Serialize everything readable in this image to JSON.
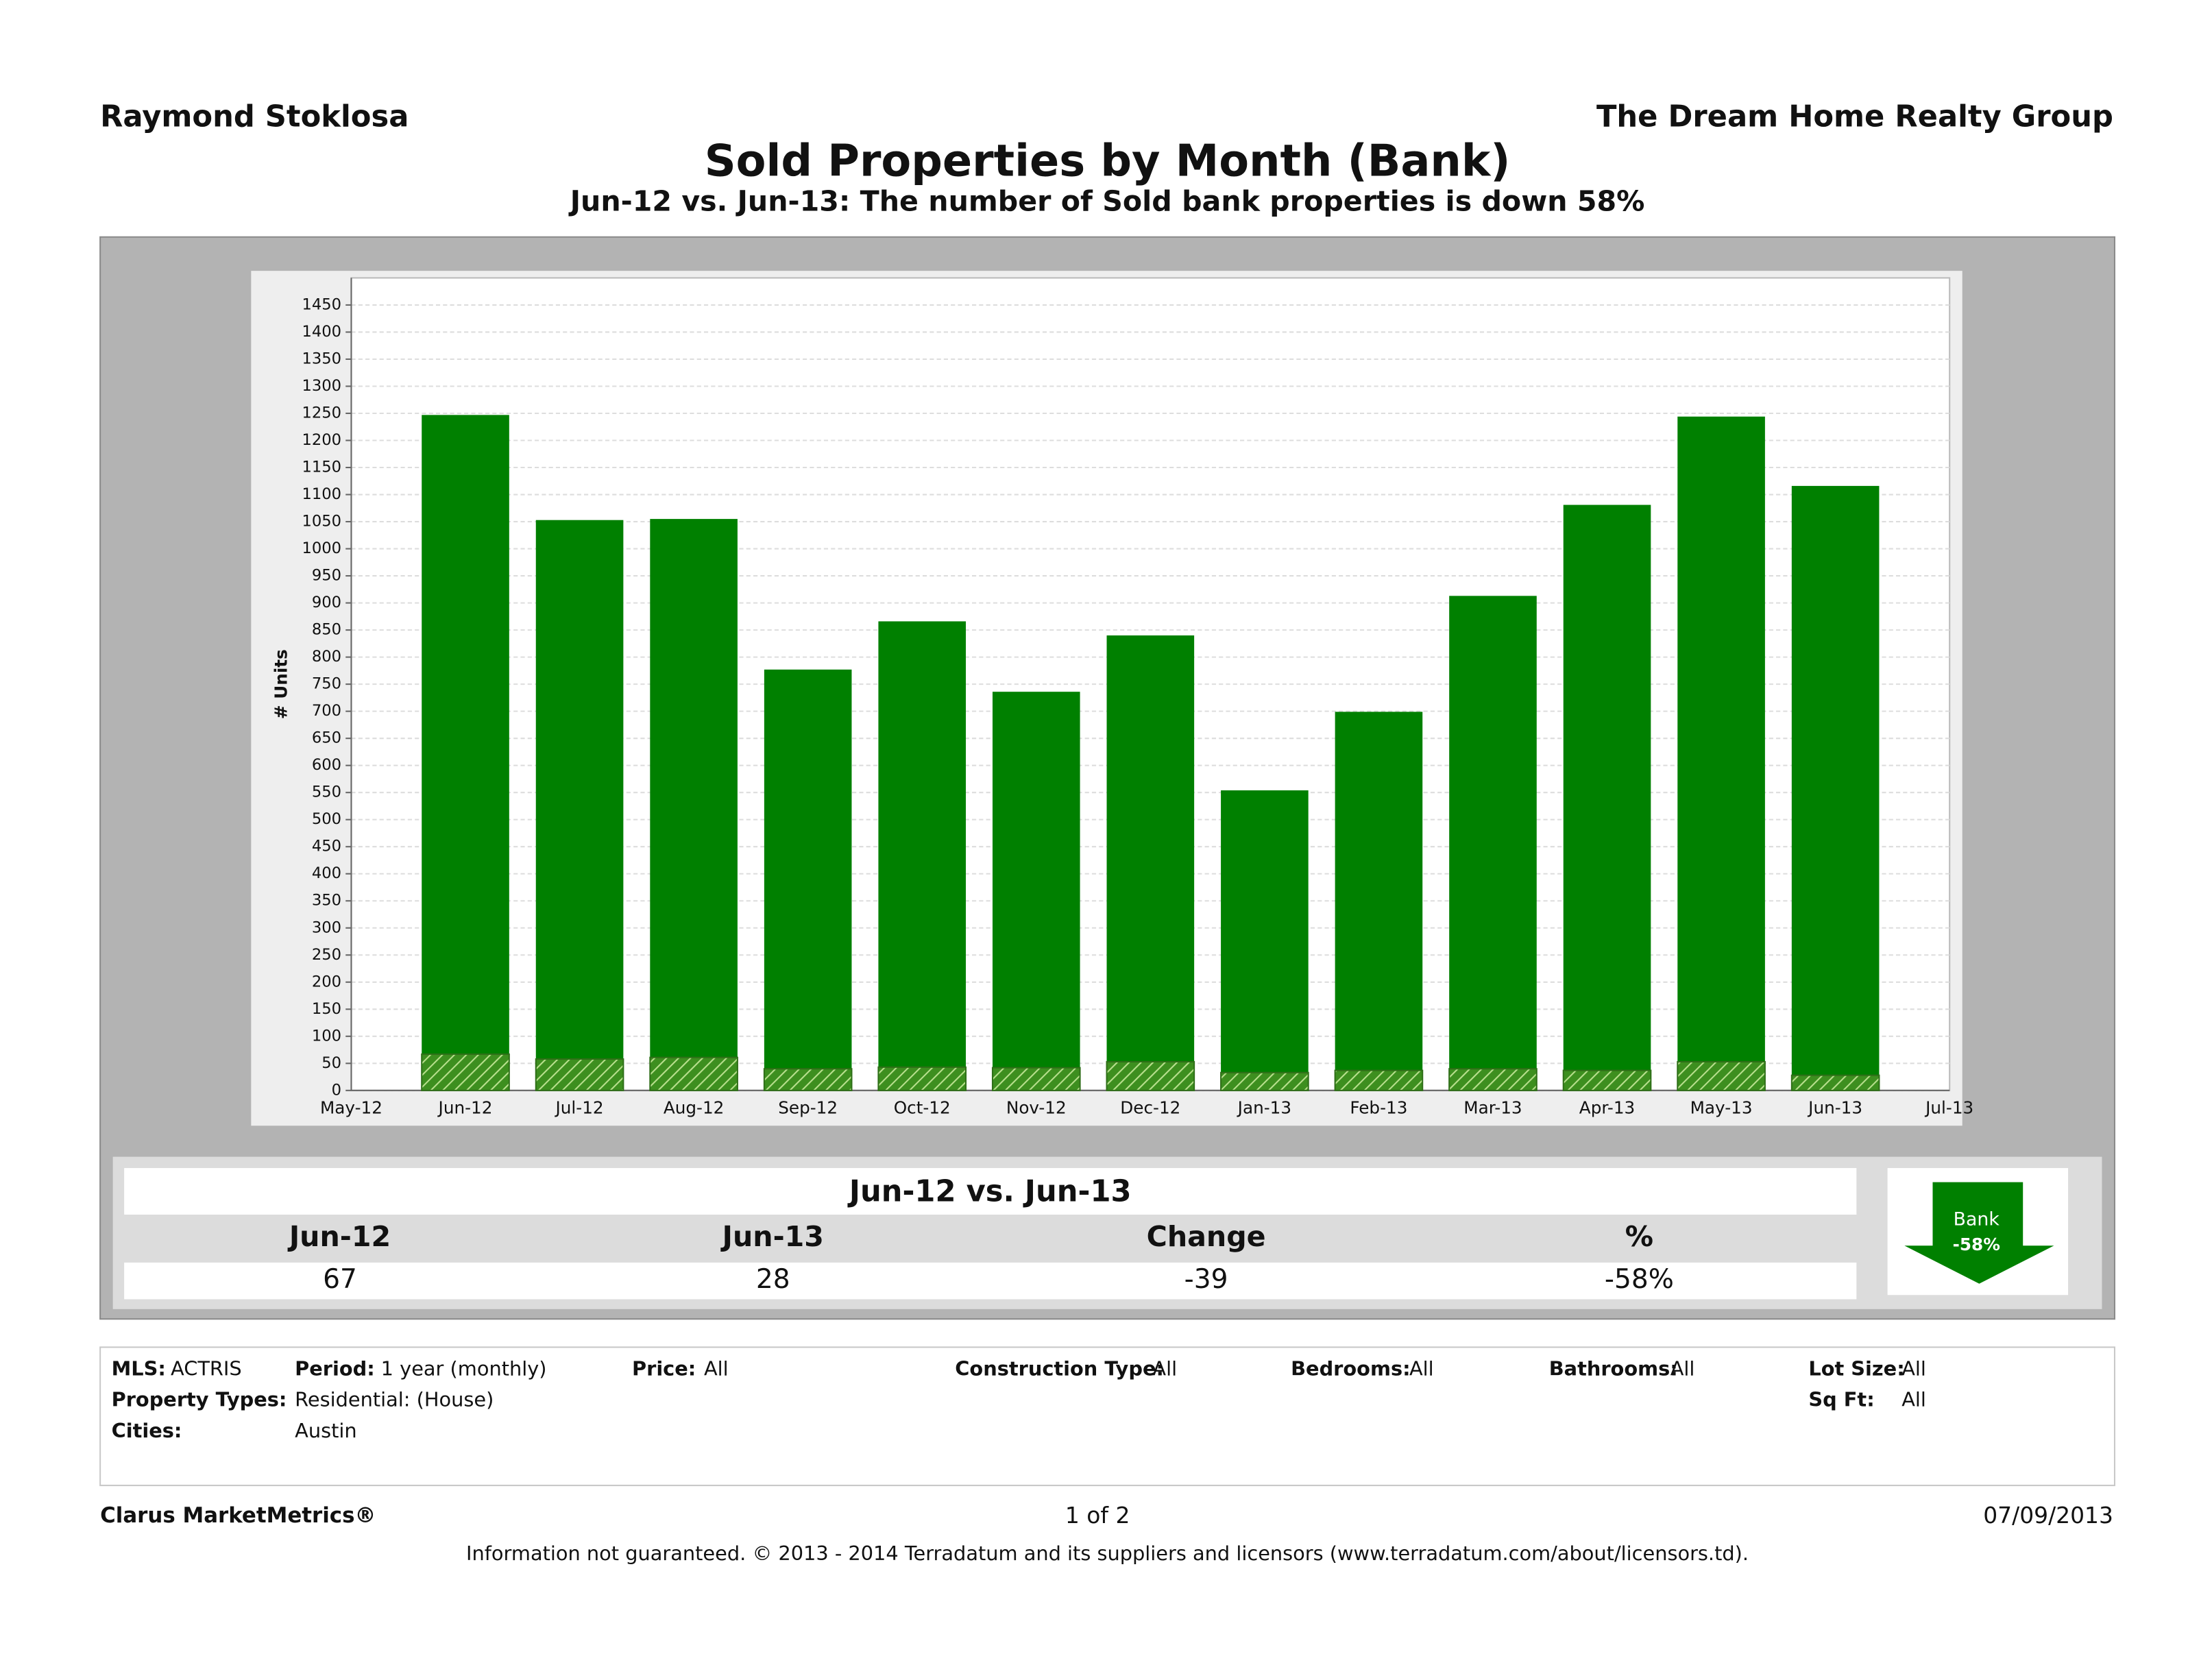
{
  "header": {
    "agent": "Raymond Stoklosa",
    "company": "The Dream Home Realty Group"
  },
  "chart_data": {
    "type": "bar",
    "title": "Sold Properties by Month (Bank)",
    "subtitle": "Jun-12 vs. Jun-13: The number of Sold bank properties is down 58%",
    "y_label": "# Units",
    "categories": [
      "May-12",
      "Jun-12",
      "Jul-12",
      "Aug-12",
      "Sep-12",
      "Oct-12",
      "Nov-12",
      "Dec-12",
      "Jan-13",
      "Feb-13",
      "Mar-13",
      "Apr-13",
      "May-13",
      "Jun-13",
      "Jul-13"
    ],
    "series": [
      {
        "color": "#008000",
        "values": [
          null,
          1247,
          1053,
          1055,
          777,
          866,
          736,
          840,
          554,
          699,
          913,
          1081,
          1244,
          1116,
          null
        ]
      },
      {
        "color": "#3d8f1f",
        "hatch": true,
        "values": [
          null,
          67,
          58,
          61,
          40,
          43,
          42,
          53,
          33,
          37,
          40,
          37,
          53,
          28,
          null
        ]
      }
    ],
    "ylim": [
      0,
      1500
    ],
    "yticks": [
      0,
      50,
      100,
      150,
      200,
      250,
      300,
      350,
      400,
      450,
      500,
      550,
      600,
      650,
      700,
      750,
      800,
      850,
      900,
      950,
      1000,
      1050,
      1100,
      1150,
      1200,
      1250,
      1300,
      1350,
      1400,
      1450
    ],
    "grid": true
  },
  "summary": {
    "title": "Jun-12 vs. Jun-13",
    "headers": [
      "Jun-12",
      "Jun-13",
      "Change",
      "%"
    ],
    "values": [
      "67",
      "28",
      "-39",
      "-58%"
    ],
    "badge": {
      "label": "Bank",
      "value": "-58%"
    }
  },
  "filters": {
    "mls": {
      "label": "MLS:",
      "value": "ACTRIS"
    },
    "period": {
      "label": "Period:",
      "value": "1 year (monthly)"
    },
    "price": {
      "label": "Price:",
      "value": "All"
    },
    "construction": {
      "label": "Construction Type:",
      "value": "All"
    },
    "bedrooms": {
      "label": "Bedrooms:",
      "value": "All"
    },
    "bathrooms": {
      "label": "Bathrooms:",
      "value": "All"
    },
    "lot_size": {
      "label": "Lot Size:",
      "value": "All"
    },
    "property_types": {
      "label": "Property Types:",
      "value": "Residential: (House)"
    },
    "sq_ft": {
      "label": "Sq Ft:",
      "value": "All"
    },
    "cities": {
      "label": "Cities:",
      "value": "Austin"
    }
  },
  "footer": {
    "brand": "Clarus MarketMetrics®",
    "page": "1 of 2",
    "date": "07/09/2013",
    "disclaimer": "Information not guaranteed.  © 2013 - 2014 Terradatum and its suppliers and licensors (www.terradatum.com/about/licensors.td)."
  }
}
